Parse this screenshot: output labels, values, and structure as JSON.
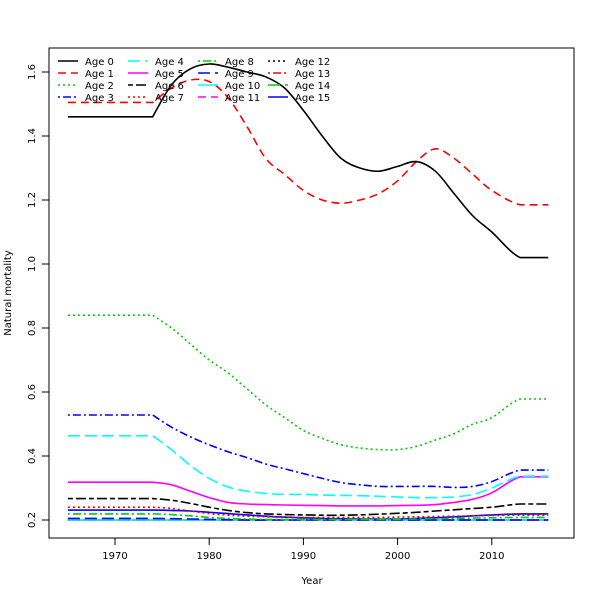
{
  "chart_data": {
    "type": "line",
    "title": "",
    "xlabel": "Year",
    "ylabel": "Natural mortality",
    "xlim": [
      1963.5,
      2018.0
    ],
    "ylim": [
      0.146,
      1.675
    ],
    "xticks": [
      1970,
      1980,
      1990,
      2000,
      2010
    ],
    "yticks": [
      0.2,
      0.4,
      0.6,
      0.8,
      1.0,
      1.2,
      1.4,
      1.6
    ],
    "ytick_labels": [
      "0.2",
      "0.4",
      "0.6",
      "0.8",
      "1.0",
      "1.2",
      "1.4",
      "1.6"
    ],
    "grid": false,
    "legend_position": "top-left",
    "x": [
      1965,
      1974,
      1976,
      1978,
      1980,
      1982,
      1984,
      1986,
      1988,
      1990,
      1992,
      1994,
      1996,
      1998,
      2000,
      2002,
      2004,
      2006,
      2008,
      2010,
      2013,
      2016
    ],
    "series": [
      {
        "name": "Age 0",
        "color": "#000000",
        "dash": "solid",
        "values": [
          1.46,
          1.46,
          1.56,
          1.61,
          1.625,
          1.615,
          1.6,
          1.585,
          1.55,
          1.48,
          1.4,
          1.33,
          1.3,
          1.29,
          1.305,
          1.32,
          1.29,
          1.22,
          1.15,
          1.1,
          1.02,
          1.02
        ]
      },
      {
        "name": "Age 1",
        "color": "#ff0000",
        "dash": "dashed",
        "values": [
          1.505,
          1.505,
          1.55,
          1.575,
          1.57,
          1.52,
          1.43,
          1.33,
          1.28,
          1.23,
          1.2,
          1.19,
          1.2,
          1.22,
          1.26,
          1.32,
          1.36,
          1.33,
          1.28,
          1.23,
          1.185,
          1.185
        ]
      },
      {
        "name": "Age 2",
        "color": "#00cd00",
        "dash": "dotted",
        "values": [
          0.84,
          0.84,
          0.8,
          0.75,
          0.7,
          0.66,
          0.61,
          0.56,
          0.52,
          0.48,
          0.455,
          0.435,
          0.425,
          0.42,
          0.42,
          0.43,
          0.45,
          0.47,
          0.5,
          0.52,
          0.578,
          0.578
        ]
      },
      {
        "name": "Age 3",
        "color": "#0000ff",
        "dash": "dotdash",
        "values": [
          0.528,
          0.528,
          0.49,
          0.46,
          0.435,
          0.413,
          0.395,
          0.375,
          0.36,
          0.345,
          0.33,
          0.317,
          0.31,
          0.305,
          0.305,
          0.305,
          0.305,
          0.302,
          0.305,
          0.32,
          0.356,
          0.356
        ]
      },
      {
        "name": "Age 4",
        "color": "#00ffff",
        "dash": "longdash",
        "values": [
          0.463,
          0.463,
          0.42,
          0.37,
          0.33,
          0.303,
          0.29,
          0.283,
          0.28,
          0.28,
          0.278,
          0.277,
          0.276,
          0.274,
          0.272,
          0.27,
          0.27,
          0.272,
          0.28,
          0.3,
          0.337,
          0.337
        ]
      },
      {
        "name": "Age 5",
        "color": "#ff00ff",
        "dash": "solid",
        "values": [
          0.318,
          0.318,
          0.31,
          0.29,
          0.27,
          0.255,
          0.25,
          0.248,
          0.247,
          0.246,
          0.245,
          0.244,
          0.244,
          0.244,
          0.245,
          0.246,
          0.248,
          0.255,
          0.265,
          0.285,
          0.335,
          0.335
        ]
      },
      {
        "name": "Age 6",
        "color": "#000000",
        "dash": "twodash",
        "values": [
          0.267,
          0.267,
          0.262,
          0.252,
          0.24,
          0.23,
          0.223,
          0.219,
          0.217,
          0.216,
          0.215,
          0.215,
          0.216,
          0.218,
          0.221,
          0.224,
          0.228,
          0.232,
          0.236,
          0.24,
          0.25,
          0.25
        ]
      },
      {
        "name": "Age 7",
        "color": "#ff0000",
        "dash": "dotted",
        "values": [
          0.24,
          0.24,
          0.236,
          0.228,
          0.22,
          0.215,
          0.212,
          0.21,
          0.209,
          0.208,
          0.208,
          0.208,
          0.208,
          0.208,
          0.209,
          0.21,
          0.211,
          0.212,
          0.213,
          0.214,
          0.215,
          0.215
        ]
      },
      {
        "name": "Age 8",
        "color": "#00cd00",
        "dash": "dotdash",
        "values": [
          0.219,
          0.219,
          0.217,
          0.213,
          0.208,
          0.205,
          0.203,
          0.202,
          0.202,
          0.202,
          0.202,
          0.202,
          0.202,
          0.202,
          0.202,
          0.203,
          0.204,
          0.205,
          0.206,
          0.207,
          0.208,
          0.208
        ]
      },
      {
        "name": "Age 9",
        "color": "#0000ff",
        "dash": "longdash",
        "values": [
          0.205,
          0.205,
          0.204,
          0.203,
          0.202,
          0.201,
          0.2,
          0.2,
          0.2,
          0.2,
          0.2,
          0.2,
          0.2,
          0.2,
          0.2,
          0.2,
          0.2,
          0.2,
          0.2,
          0.2,
          0.2,
          0.2
        ]
      },
      {
        "name": "Age 10",
        "color": "#00ffff",
        "dash": "solid",
        "values": [
          0.2,
          0.2,
          0.2,
          0.2,
          0.2,
          0.2,
          0.2,
          0.2,
          0.2,
          0.2,
          0.2,
          0.2,
          0.2,
          0.2,
          0.2,
          0.2,
          0.2,
          0.2,
          0.2,
          0.2,
          0.2,
          0.2
        ]
      },
      {
        "name": "Age 11",
        "color": "#ff00ff",
        "dash": "dashed",
        "values": [
          0.2,
          0.2,
          0.2,
          0.2,
          0.2,
          0.2,
          0.2,
          0.2,
          0.2,
          0.2,
          0.2,
          0.2,
          0.2,
          0.2,
          0.2,
          0.2,
          0.2,
          0.2,
          0.2,
          0.2,
          0.2,
          0.2
        ]
      },
      {
        "name": "Age 12",
        "color": "#000000",
        "dash": "dotted",
        "values": [
          0.2,
          0.2,
          0.2,
          0.2,
          0.2,
          0.2,
          0.2,
          0.2,
          0.2,
          0.2,
          0.2,
          0.2,
          0.2,
          0.2,
          0.2,
          0.2,
          0.2,
          0.2,
          0.2,
          0.2,
          0.2,
          0.2
        ]
      },
      {
        "name": "Age 13",
        "color": "#ff0000",
        "dash": "dotdash",
        "values": [
          0.2,
          0.2,
          0.2,
          0.2,
          0.2,
          0.2,
          0.2,
          0.2,
          0.2,
          0.2,
          0.2,
          0.2,
          0.2,
          0.2,
          0.2,
          0.2,
          0.2,
          0.2,
          0.2,
          0.2,
          0.2,
          0.2
        ]
      },
      {
        "name": "Age 14",
        "color": "#00cd00",
        "dash": "longdash",
        "values": [
          0.2,
          0.2,
          0.2,
          0.2,
          0.2,
          0.2,
          0.2,
          0.2,
          0.2,
          0.2,
          0.2,
          0.2,
          0.2,
          0.2,
          0.2,
          0.2,
          0.2,
          0.2,
          0.2,
          0.2,
          0.2,
          0.2
        ]
      },
      {
        "name": "Age 15",
        "color": "#0000ff",
        "dash": "solid",
        "values": [
          0.231,
          0.231,
          0.23,
          0.228,
          0.224,
          0.22,
          0.216,
          0.212,
          0.209,
          0.207,
          0.205,
          0.204,
          0.203,
          0.203,
          0.203,
          0.205,
          0.207,
          0.21,
          0.213,
          0.216,
          0.219,
          0.219
        ]
      }
    ]
  }
}
